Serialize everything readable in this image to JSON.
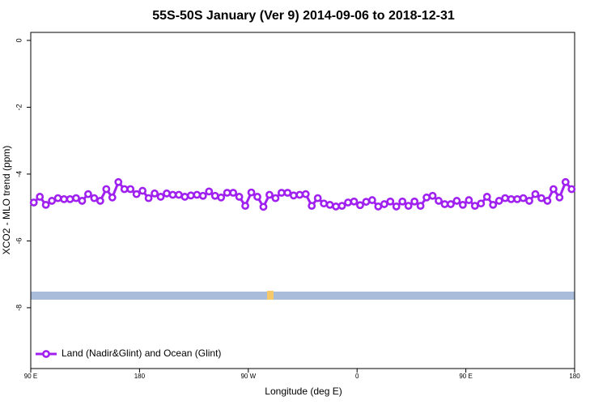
{
  "chart_data": {
    "type": "line",
    "title": "55S-50S January (Ver 9)   2014-09-06 to 2018-12-31",
    "xlabel": "Longitude (deg E)",
    "ylabel": "XCO2 - MLO trend (ppm)",
    "xlim": [
      90,
      540
    ],
    "ylim": [
      -9.82,
      0.24
    ],
    "xticks": [
      {
        "value": 90,
        "label": "90 E"
      },
      180,
      {
        "value": 270,
        "label": "90 W"
      },
      {
        "value": 360,
        "label": "0"
      },
      {
        "value": 450,
        "label": "90 E"
      },
      {
        "value": 540,
        "label": "180"
      }
    ],
    "yticks": [
      0,
      -2,
      -4,
      -6,
      -8
    ],
    "legend": "bottomleft",
    "series": [
      {
        "name": "Land (Nadir&Glint) and Ocean (Glint)",
        "color": "#a020f0",
        "x": [
          92.5,
          97.5,
          102.5,
          107.5,
          112.5,
          117.5,
          122.5,
          127.5,
          132.5,
          137.5,
          142.5,
          147.5,
          152.5,
          157.5,
          162.5,
          167.5,
          172.5,
          177.5,
          182.5,
          187.5,
          192.5,
          197.5,
          202.5,
          207.5,
          212.5,
          217.5,
          222.5,
          227.5,
          232.5,
          237.5,
          242.5,
          247.5,
          252.5,
          257.5,
          262.5,
          267.5,
          272.5,
          277.5,
          282.5,
          287.5,
          292.5,
          297.5,
          302.5,
          307.5,
          312.5,
          317.5,
          322.5,
          327.5,
          332.5,
          337.5,
          342.5,
          347.5,
          352.5,
          357.5,
          362.5,
          367.5,
          372.5,
          377.5,
          382.5,
          387.5,
          392.5,
          397.5,
          402.5,
          407.5,
          412.5,
          417.5,
          422.5,
          427.5,
          432.5,
          437.5,
          442.5,
          447.5,
          452.5,
          457.5,
          462.5,
          467.5,
          472.5,
          477.5,
          482.5,
          487.5,
          492.5,
          497.5,
          502.5,
          507.5,
          512.5,
          517.5,
          522.5,
          527.5,
          532.5,
          537.5
        ],
        "values": [
          -4.85,
          -4.68,
          -4.92,
          -4.8,
          -4.72,
          -4.75,
          -4.75,
          -4.72,
          -4.8,
          -4.6,
          -4.72,
          -4.8,
          -4.45,
          -4.7,
          -4.24,
          -4.45,
          -4.45,
          -4.6,
          -4.5,
          -4.72,
          -4.58,
          -4.68,
          -4.58,
          -4.62,
          -4.62,
          -4.68,
          -4.64,
          -4.62,
          -4.65,
          -4.52,
          -4.65,
          -4.7,
          -4.56,
          -4.56,
          -4.68,
          -4.95,
          -4.55,
          -4.68,
          -4.98,
          -4.62,
          -4.72,
          -4.56,
          -4.56,
          -4.64,
          -4.62,
          -4.6,
          -4.95,
          -4.72,
          -4.88,
          -4.92,
          -4.97,
          -4.95,
          -4.85,
          -4.82,
          -4.93,
          -4.83,
          -4.78,
          -4.97,
          -4.9,
          -4.82,
          -4.97,
          -4.82,
          -4.95,
          -4.82,
          -4.95,
          -4.7,
          -4.65,
          -4.8,
          -4.9,
          -4.9,
          -4.8,
          -4.92,
          -4.78,
          -4.95,
          -4.88,
          -4.68,
          -4.92,
          -4.8,
          -4.72,
          -4.75,
          -4.75,
          -4.72,
          -4.8,
          -4.6,
          -4.72,
          -4.8,
          -4.45,
          -4.7,
          -4.24,
          -4.45
        ]
      }
    ]
  }
}
